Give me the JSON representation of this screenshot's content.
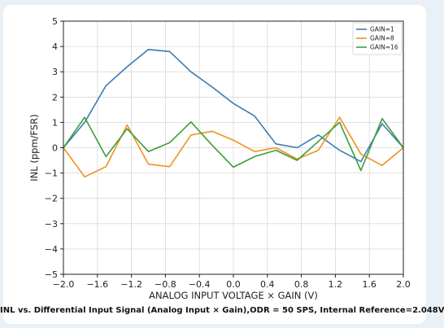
{
  "chart_data": {
    "type": "line",
    "xlabel": "ANALOG INPUT VOLTAGE × GAIN (V)",
    "ylabel": "INL (ppm/FSR)",
    "xlim": [
      -2.0,
      2.0
    ],
    "ylim": [
      -5,
      5
    ],
    "xticks": [
      "−2.0",
      "−1.6",
      "−1.2",
      "−0.8",
      "−0.4",
      "0.0",
      "0.4",
      "0.8",
      "1.2",
      "1.6",
      "2.0"
    ],
    "yticks": [
      "−5",
      "−4",
      "−3",
      "−2",
      "−1",
      "0",
      "1",
      "2",
      "3",
      "4",
      "5"
    ],
    "grid": true,
    "legend_position": "top-right",
    "series": [
      {
        "name": "GAIN=1",
        "color": "#3b7bb2",
        "x": [
          -2.0,
          -1.75,
          -1.5,
          -1.25,
          -1.0,
          -0.75,
          -0.5,
          -0.25,
          0.0,
          0.25,
          0.5,
          0.75,
          1.0,
          1.25,
          1.5,
          1.75,
          2.0
        ],
        "y": [
          0.0,
          1.0,
          2.45,
          3.2,
          3.88,
          3.8,
          3.0,
          2.4,
          1.75,
          1.25,
          0.15,
          0.0,
          0.5,
          -0.1,
          -0.55,
          0.95,
          0.0
        ]
      },
      {
        "name": "GAIN=8",
        "color": "#f0921e",
        "x": [
          -2.0,
          -1.75,
          -1.5,
          -1.25,
          -1.0,
          -0.75,
          -0.5,
          -0.25,
          0.0,
          0.25,
          0.5,
          0.75,
          1.0,
          1.25,
          1.5,
          1.75,
          2.0
        ],
        "y": [
          0.0,
          -1.15,
          -0.75,
          0.9,
          -0.65,
          -0.75,
          0.5,
          0.65,
          0.3,
          -0.15,
          0.0,
          -0.45,
          -0.1,
          1.2,
          -0.25,
          -0.7,
          0.0
        ]
      },
      {
        "name": "GAIN=16",
        "color": "#3c9e3c",
        "x": [
          -2.0,
          -1.75,
          -1.5,
          -1.25,
          -1.0,
          -0.75,
          -0.5,
          -0.25,
          0.0,
          0.25,
          0.5,
          0.75,
          1.0,
          1.25,
          1.5,
          1.75,
          2.0
        ],
        "y": [
          0.0,
          1.2,
          -0.35,
          0.75,
          -0.15,
          0.2,
          1.02,
          0.1,
          -0.77,
          -0.35,
          -0.1,
          -0.5,
          0.25,
          1.0,
          -0.9,
          1.15,
          0.0
        ]
      }
    ]
  },
  "caption": "INL vs. Differential Input Signal (Analog Input × Gain),ODR = 50 SPS, Internal Reference=2.048V"
}
